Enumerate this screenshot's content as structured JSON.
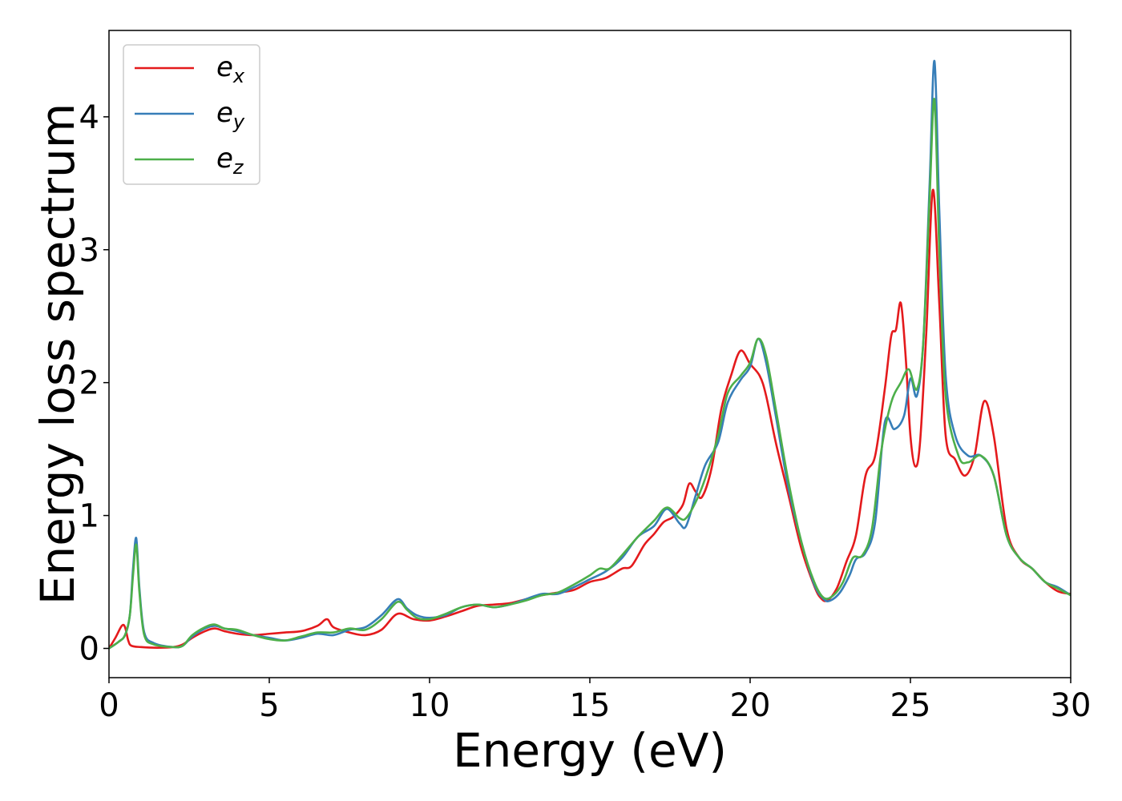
{
  "chart_data": {
    "type": "line",
    "xlabel": "Energy (eV)",
    "ylabel": "Energy loss spectrum",
    "xlim": [
      0,
      30
    ],
    "ylim": [
      -0.22,
      4.65
    ],
    "xticks": [
      0,
      5,
      10,
      15,
      20,
      25,
      30
    ],
    "xtick_labels": [
      "0",
      "5",
      "10",
      "15",
      "20",
      "25",
      "30"
    ],
    "yticks": [
      0,
      1,
      2,
      3,
      4
    ],
    "ytick_labels": [
      "0",
      "1",
      "2",
      "3",
      "4"
    ],
    "grid": false,
    "legend_position": "top-left",
    "series": [
      {
        "name": "e",
        "subscript": "x",
        "color": "#e41a1c",
        "points": [
          [
            0,
            0
          ],
          [
            0.2,
            0.08
          ],
          [
            0.4,
            0.17
          ],
          [
            0.5,
            0.16
          ],
          [
            0.6,
            0.06
          ],
          [
            0.7,
            0.02
          ],
          [
            1.0,
            0.01
          ],
          [
            1.5,
            0.005
          ],
          [
            2.0,
            0.01
          ],
          [
            2.3,
            0.03
          ],
          [
            2.6,
            0.08
          ],
          [
            3.0,
            0.13
          ],
          [
            3.3,
            0.15
          ],
          [
            3.6,
            0.13
          ],
          [
            4.0,
            0.11
          ],
          [
            4.5,
            0.1
          ],
          [
            5.0,
            0.11
          ],
          [
            5.5,
            0.12
          ],
          [
            6.0,
            0.13
          ],
          [
            6.5,
            0.17
          ],
          [
            6.8,
            0.22
          ],
          [
            7.0,
            0.16
          ],
          [
            7.5,
            0.12
          ],
          [
            8.0,
            0.1
          ],
          [
            8.5,
            0.14
          ],
          [
            9.0,
            0.26
          ],
          [
            9.5,
            0.22
          ],
          [
            10.0,
            0.21
          ],
          [
            10.5,
            0.24
          ],
          [
            11.0,
            0.28
          ],
          [
            11.5,
            0.32
          ],
          [
            12.0,
            0.33
          ],
          [
            12.5,
            0.34
          ],
          [
            13.0,
            0.37
          ],
          [
            13.5,
            0.4
          ],
          [
            14.0,
            0.42
          ],
          [
            14.5,
            0.44
          ],
          [
            15.0,
            0.5
          ],
          [
            15.5,
            0.53
          ],
          [
            16.0,
            0.6
          ],
          [
            16.3,
            0.62
          ],
          [
            16.7,
            0.78
          ],
          [
            17.0,
            0.86
          ],
          [
            17.3,
            0.95
          ],
          [
            17.6,
            0.99
          ],
          [
            17.9,
            1.08
          ],
          [
            18.1,
            1.24
          ],
          [
            18.3,
            1.18
          ],
          [
            18.5,
            1.14
          ],
          [
            18.8,
            1.36
          ],
          [
            19.1,
            1.8
          ],
          [
            19.4,
            2.05
          ],
          [
            19.7,
            2.24
          ],
          [
            20.0,
            2.14
          ],
          [
            20.3,
            2.05
          ],
          [
            20.5,
            1.9
          ],
          [
            20.8,
            1.55
          ],
          [
            21.2,
            1.15
          ],
          [
            21.6,
            0.75
          ],
          [
            22.0,
            0.47
          ],
          [
            22.2,
            0.38
          ],
          [
            22.4,
            0.36
          ],
          [
            22.7,
            0.45
          ],
          [
            23.0,
            0.65
          ],
          [
            23.3,
            0.85
          ],
          [
            23.6,
            1.3
          ],
          [
            23.9,
            1.45
          ],
          [
            24.2,
            1.95
          ],
          [
            24.4,
            2.35
          ],
          [
            24.55,
            2.4
          ],
          [
            24.7,
            2.6
          ],
          [
            24.85,
            2.2
          ],
          [
            25.0,
            1.6
          ],
          [
            25.15,
            1.37
          ],
          [
            25.3,
            1.55
          ],
          [
            25.5,
            2.4
          ],
          [
            25.7,
            3.45
          ],
          [
            25.9,
            2.6
          ],
          [
            26.1,
            1.6
          ],
          [
            26.4,
            1.42
          ],
          [
            26.7,
            1.3
          ],
          [
            27.0,
            1.45
          ],
          [
            27.3,
            1.86
          ],
          [
            27.6,
            1.6
          ],
          [
            28.0,
            0.9
          ],
          [
            28.4,
            0.68
          ],
          [
            28.8,
            0.6
          ],
          [
            29.2,
            0.5
          ],
          [
            29.6,
            0.43
          ],
          [
            30.0,
            0.41
          ]
        ]
      },
      {
        "name": "e",
        "subscript": "y",
        "color": "#377eb8",
        "points": [
          [
            0,
            0
          ],
          [
            0.3,
            0.05
          ],
          [
            0.5,
            0.1
          ],
          [
            0.65,
            0.25
          ],
          [
            0.75,
            0.6
          ],
          [
            0.85,
            0.83
          ],
          [
            0.95,
            0.45
          ],
          [
            1.1,
            0.12
          ],
          [
            1.4,
            0.04
          ],
          [
            2.0,
            0.01
          ],
          [
            2.3,
            0.02
          ],
          [
            2.6,
            0.09
          ],
          [
            3.0,
            0.15
          ],
          [
            3.3,
            0.17
          ],
          [
            3.6,
            0.15
          ],
          [
            4.0,
            0.13
          ],
          [
            4.5,
            0.1
          ],
          [
            5.0,
            0.08
          ],
          [
            5.5,
            0.06
          ],
          [
            6.0,
            0.08
          ],
          [
            6.5,
            0.11
          ],
          [
            7.0,
            0.1
          ],
          [
            7.5,
            0.14
          ],
          [
            8.0,
            0.16
          ],
          [
            8.5,
            0.25
          ],
          [
            9.0,
            0.37
          ],
          [
            9.3,
            0.3
          ],
          [
            9.6,
            0.25
          ],
          [
            10.0,
            0.23
          ],
          [
            10.5,
            0.25
          ],
          [
            11.0,
            0.31
          ],
          [
            11.5,
            0.33
          ],
          [
            12.0,
            0.31
          ],
          [
            12.5,
            0.33
          ],
          [
            13.0,
            0.37
          ],
          [
            13.5,
            0.41
          ],
          [
            14.0,
            0.41
          ],
          [
            14.5,
            0.46
          ],
          [
            15.0,
            0.52
          ],
          [
            15.5,
            0.58
          ],
          [
            16.0,
            0.68
          ],
          [
            16.5,
            0.84
          ],
          [
            17.0,
            0.92
          ],
          [
            17.4,
            1.05
          ],
          [
            17.8,
            0.94
          ],
          [
            18.0,
            0.92
          ],
          [
            18.3,
            1.15
          ],
          [
            18.6,
            1.38
          ],
          [
            19.0,
            1.55
          ],
          [
            19.3,
            1.85
          ],
          [
            19.7,
            2.02
          ],
          [
            20.0,
            2.12
          ],
          [
            20.25,
            2.33
          ],
          [
            20.5,
            2.15
          ],
          [
            20.8,
            1.75
          ],
          [
            21.2,
            1.2
          ],
          [
            21.6,
            0.8
          ],
          [
            22.0,
            0.48
          ],
          [
            22.3,
            0.37
          ],
          [
            22.5,
            0.36
          ],
          [
            22.8,
            0.42
          ],
          [
            23.1,
            0.55
          ],
          [
            23.3,
            0.67
          ],
          [
            23.6,
            0.72
          ],
          [
            23.9,
            0.95
          ],
          [
            24.2,
            1.7
          ],
          [
            24.5,
            1.65
          ],
          [
            24.8,
            1.75
          ],
          [
            25.0,
            2.03
          ],
          [
            25.2,
            1.9
          ],
          [
            25.4,
            2.3
          ],
          [
            25.6,
            3.5
          ],
          [
            25.75,
            4.42
          ],
          [
            25.9,
            3.3
          ],
          [
            26.1,
            2.05
          ],
          [
            26.4,
            1.6
          ],
          [
            26.8,
            1.45
          ],
          [
            27.2,
            1.45
          ],
          [
            27.6,
            1.3
          ],
          [
            28.0,
            0.85
          ],
          [
            28.4,
            0.68
          ],
          [
            28.8,
            0.6
          ],
          [
            29.2,
            0.5
          ],
          [
            29.6,
            0.46
          ],
          [
            30.0,
            0.4
          ]
        ]
      },
      {
        "name": "e",
        "subscript": "z",
        "color": "#4daf4a",
        "points": [
          [
            0,
            0
          ],
          [
            0.3,
            0.05
          ],
          [
            0.5,
            0.1
          ],
          [
            0.65,
            0.25
          ],
          [
            0.75,
            0.55
          ],
          [
            0.85,
            0.78
          ],
          [
            0.95,
            0.42
          ],
          [
            1.1,
            0.1
          ],
          [
            1.4,
            0.03
          ],
          [
            2.0,
            0.01
          ],
          [
            2.3,
            0.02
          ],
          [
            2.6,
            0.1
          ],
          [
            3.0,
            0.16
          ],
          [
            3.3,
            0.18
          ],
          [
            3.6,
            0.15
          ],
          [
            4.0,
            0.14
          ],
          [
            4.5,
            0.1
          ],
          [
            5.0,
            0.07
          ],
          [
            5.5,
            0.06
          ],
          [
            6.0,
            0.09
          ],
          [
            6.5,
            0.12
          ],
          [
            7.0,
            0.12
          ],
          [
            7.5,
            0.15
          ],
          [
            8.0,
            0.14
          ],
          [
            8.5,
            0.22
          ],
          [
            9.0,
            0.35
          ],
          [
            9.3,
            0.29
          ],
          [
            9.6,
            0.23
          ],
          [
            10.0,
            0.22
          ],
          [
            10.5,
            0.26
          ],
          [
            11.0,
            0.31
          ],
          [
            11.5,
            0.33
          ],
          [
            12.0,
            0.31
          ],
          [
            12.5,
            0.33
          ],
          [
            13.0,
            0.36
          ],
          [
            13.5,
            0.4
          ],
          [
            14.0,
            0.42
          ],
          [
            14.5,
            0.48
          ],
          [
            15.0,
            0.55
          ],
          [
            15.3,
            0.6
          ],
          [
            15.6,
            0.6
          ],
          [
            16.0,
            0.7
          ],
          [
            16.5,
            0.84
          ],
          [
            17.0,
            0.96
          ],
          [
            17.4,
            1.06
          ],
          [
            17.8,
            0.98
          ],
          [
            18.0,
            0.98
          ],
          [
            18.3,
            1.1
          ],
          [
            18.6,
            1.28
          ],
          [
            19.0,
            1.6
          ],
          [
            19.3,
            1.92
          ],
          [
            19.7,
            2.05
          ],
          [
            20.0,
            2.15
          ],
          [
            20.25,
            2.33
          ],
          [
            20.5,
            2.2
          ],
          [
            20.8,
            1.8
          ],
          [
            21.2,
            1.25
          ],
          [
            21.6,
            0.8
          ],
          [
            22.0,
            0.5
          ],
          [
            22.3,
            0.38
          ],
          [
            22.6,
            0.4
          ],
          [
            22.9,
            0.5
          ],
          [
            23.2,
            0.68
          ],
          [
            23.5,
            0.7
          ],
          [
            23.8,
            0.9
          ],
          [
            24.1,
            1.5
          ],
          [
            24.4,
            1.85
          ],
          [
            24.7,
            2.0
          ],
          [
            24.95,
            2.1
          ],
          [
            25.2,
            1.95
          ],
          [
            25.4,
            2.3
          ],
          [
            25.6,
            3.4
          ],
          [
            25.75,
            4.13
          ],
          [
            25.9,
            3.0
          ],
          [
            26.1,
            1.9
          ],
          [
            26.5,
            1.45
          ],
          [
            26.8,
            1.4
          ],
          [
            27.2,
            1.45
          ],
          [
            27.6,
            1.3
          ],
          [
            28.0,
            0.85
          ],
          [
            28.4,
            0.68
          ],
          [
            28.8,
            0.6
          ],
          [
            29.2,
            0.5
          ],
          [
            29.6,
            0.45
          ],
          [
            30.0,
            0.4
          ]
        ]
      }
    ]
  }
}
